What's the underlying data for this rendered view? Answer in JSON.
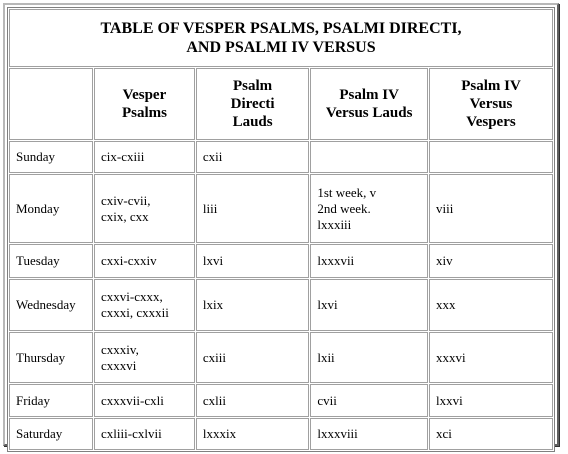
{
  "table": {
    "title": {
      "line1": "TABLE OF VESPER PSALMS, PSALMI DIRECTI,",
      "line2": "AND PSALMI IV VERSUS"
    },
    "headers": [
      {
        "line1": "",
        "line2": "",
        "line3": ""
      },
      {
        "line1": "Vesper",
        "line2": "Psalms",
        "line3": ""
      },
      {
        "line1": "Psalm",
        "line2": "Directi",
        "line3": "Lauds"
      },
      {
        "line1": "Psalm IV",
        "line2": "Versus Lauds",
        "line3": ""
      },
      {
        "line1": "Psalm IV",
        "line2": "Versus",
        "line3": "Vespers"
      }
    ],
    "rows": [
      {
        "day": "Sunday",
        "vesper": [
          "cix-cxiii",
          ""
        ],
        "directi": "cxii",
        "lauds": [
          "",
          "",
          ""
        ],
        "vespers": ""
      },
      {
        "day": "Monday",
        "vesper": [
          "cxiv-cvii,",
          "cxix, cxx"
        ],
        "directi": "liii",
        "lauds": [
          "1st week, v",
          "2nd week.",
          "lxxxiii"
        ],
        "vespers": "viii"
      },
      {
        "day": "Tuesday",
        "vesper": [
          "cxxi-cxxiv",
          ""
        ],
        "directi": "lxvi",
        "lauds": [
          "lxxxvii",
          "",
          ""
        ],
        "vespers": "xiv"
      },
      {
        "day": "Wednesday",
        "vesper": [
          "cxxvi-cxxx,",
          "cxxxi, cxxxii"
        ],
        "directi": "lxix",
        "lauds": [
          "lxvi",
          "",
          ""
        ],
        "vespers": "xxx"
      },
      {
        "day": "Thursday",
        "vesper": [
          "cxxxiv,",
          "cxxxvi"
        ],
        "directi": "cxiii",
        "lauds": [
          "lxii",
          "",
          ""
        ],
        "vespers": "xxxvi"
      },
      {
        "day": "Friday",
        "vesper": [
          "cxxxvii-cxli",
          ""
        ],
        "directi": "cxlii",
        "lauds": [
          "cvii",
          "",
          ""
        ],
        "vespers": "lxxvi"
      },
      {
        "day": "Saturday",
        "vesper": [
          "cxliii-cxlvii",
          ""
        ],
        "directi": "lxxxix",
        "lauds": [
          "lxxxviii",
          "",
          ""
        ],
        "vespers": "xci"
      }
    ]
  }
}
